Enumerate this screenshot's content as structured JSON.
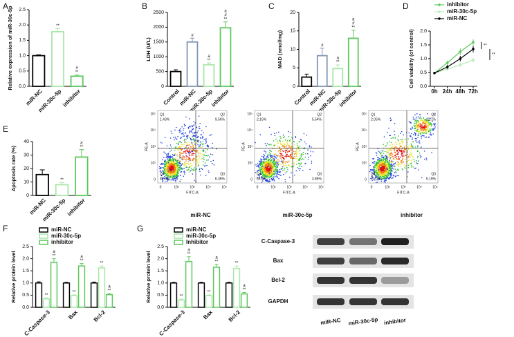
{
  "chart_data": [
    {
      "type": "bar",
      "panel": "A",
      "ylabel": "Relative expression of miR-30c-5p",
      "categories": [
        "miR-NC",
        "miR-30c-5p",
        "inhibitor"
      ],
      "values": [
        1.0,
        1.78,
        0.33
      ],
      "errors": [
        0.03,
        0.1,
        0.04
      ],
      "colors": [
        "#000000",
        "#a8e6a8",
        "#5cc85c"
      ],
      "annotations": [
        null,
        [
          "**"
        ],
        [
          "#",
          "**"
        ]
      ],
      "ylim": [
        0,
        2.5
      ],
      "yticks": [
        {
          "value": 0,
          "label": "0.0"
        },
        0.5,
        {
          "value": 1,
          "label": "1.0"
        },
        1.5,
        {
          "value": 2,
          "label": "2.0"
        },
        2.5
      ]
    },
    {
      "type": "bar",
      "panel": "B",
      "ylabel": "LDH (U/L)",
      "categories": [
        "Control",
        "miR-NC",
        "miR-30c-5p",
        "inhibitor"
      ],
      "values": [
        500,
        1500,
        730,
        1980
      ],
      "errors": [
        60,
        130,
        60,
        200
      ],
      "colors": [
        "#000000",
        "#8096b4",
        "#a8e6a8",
        "#5cc85c"
      ],
      "annotations": [
        null,
        [
          "#"
        ],
        [
          "a",
          "**"
        ],
        [
          "a",
          "#",
          "**"
        ]
      ],
      "ylim": [
        0,
        2500
      ],
      "yticks": [
        0,
        500,
        1000,
        1500,
        2000,
        2500
      ]
    },
    {
      "type": "bar",
      "panel": "C",
      "ylabel": "MAD (nmol/mg)",
      "categories": [
        "Control",
        "miR-NC",
        "miR-30c-5p",
        "inhibitor"
      ],
      "values": [
        2.5,
        8.3,
        4.8,
        13.0
      ],
      "errors": [
        0.8,
        2.0,
        1.0,
        2.2
      ],
      "colors": [
        "#000000",
        "#8096b4",
        "#a8e6a8",
        "#5cc85c"
      ],
      "annotations": [
        null,
        [
          "#"
        ],
        [
          "a",
          "**"
        ],
        [
          "a",
          "#",
          "**"
        ]
      ],
      "ylim": [
        0,
        20
      ],
      "yticks": [
        0,
        5,
        10,
        15,
        20
      ]
    },
    {
      "type": "line",
      "panel": "D",
      "ylabel": "Cell viability (of control)",
      "categories": [
        "0h",
        "24h",
        "48h",
        "72h"
      ],
      "series": [
        {
          "name": "inhibitor",
          "color": "#5cc85c",
          "values": [
            0.48,
            0.85,
            1.25,
            1.6
          ],
          "errors": [
            0.04,
            0.08,
            0.12,
            0.1
          ]
        },
        {
          "name": "miR-30c-5p",
          "color": "#b8ecb8",
          "values": [
            0.48,
            0.62,
            0.78,
            0.95
          ],
          "errors": [
            0.04,
            0.06,
            0.08,
            0.08
          ]
        },
        {
          "name": "miR-NC",
          "color": "#000000",
          "values": [
            0.48,
            0.7,
            1.0,
            1.35
          ],
          "errors": [
            0.04,
            0.07,
            0.1,
            0.12
          ]
        }
      ],
      "annotations": [
        "**",
        "**"
      ],
      "ylim": [
        0,
        2.0
      ],
      "yticks": [
        {
          "value": 0,
          "label": "0.0"
        },
        0.5,
        {
          "value": 1,
          "label": "1.0"
        },
        1.5,
        {
          "value": 2,
          "label": "2.0"
        }
      ]
    },
    {
      "type": "bar",
      "panel": "E",
      "ylabel": "Apoptosis rate (%)",
      "categories": [
        "miR-NC",
        "miR-30c-5p",
        "inhibitor"
      ],
      "values": [
        15.5,
        8,
        28.5
      ],
      "errors": [
        3.5,
        1.5,
        5.5
      ],
      "colors": [
        "#000000",
        "#a8e6a8",
        "#5cc85c"
      ],
      "annotations": [
        null,
        [
          "**"
        ],
        [
          "a",
          "**"
        ]
      ],
      "ylim": [
        0,
        40
      ],
      "yticks": [
        0,
        10,
        20,
        30,
        40
      ]
    },
    {
      "type": "grouped_bar",
      "panel": "F",
      "ylabel": "Relative protein level",
      "categories": [
        "C-Caspase-3",
        "Bax",
        "Bcl-2"
      ],
      "series": [
        {
          "name": "miR-NC",
          "color": "#000000",
          "values": [
            1.0,
            1.0,
            1.0
          ],
          "errors": [
            0.05,
            0.03,
            0.04
          ]
        },
        {
          "name": "miR-30c-5p",
          "color": "#a8e6a8",
          "values": [
            0.35,
            0.48,
            1.62
          ],
          "errors": [
            0.04,
            0.03,
            0.08
          ],
          "annotations": [
            [
              "**"
            ],
            [
              "**"
            ],
            [
              "**"
            ]
          ]
        },
        {
          "name": "inhibitor",
          "color": "#5cc85c",
          "values": [
            1.85,
            1.7,
            0.52
          ],
          "errors": [
            0.15,
            0.1,
            0.05
          ],
          "annotations": [
            [
              "a",
              "**"
            ],
            [
              "a",
              "**"
            ],
            [
              "a",
              "**"
            ]
          ]
        }
      ],
      "ylim": [
        0,
        2.5
      ],
      "yticks": [
        {
          "value": 0,
          "label": "0.0"
        },
        0.5,
        {
          "value": 1,
          "label": "1.0"
        },
        1.5,
        {
          "value": 2,
          "label": "2.0"
        },
        2.5
      ]
    },
    {
      "type": "grouped_bar",
      "panel": "G",
      "ylabel": "Relative protein level",
      "categories": [
        "C-Caspase-3",
        "Bax",
        "Bcl-2"
      ],
      "series": [
        {
          "name": "miR-NC",
          "color": "#000000",
          "values": [
            1.0,
            1.0,
            1.0
          ],
          "errors": [
            0.03,
            0.03,
            0.03
          ]
        },
        {
          "name": "miR-30c-5p",
          "color": "#a8e6a8",
          "values": [
            0.3,
            0.48,
            1.6
          ],
          "errors": [
            0.04,
            0.03,
            0.1
          ],
          "annotations": [
            [
              "**"
            ],
            [
              "**"
            ],
            [
              "**"
            ]
          ]
        },
        {
          "name": "Inhibitor",
          "color": "#5cc85c",
          "values": [
            1.88,
            1.65,
            0.55
          ],
          "errors": [
            0.2,
            0.12,
            0.06
          ],
          "annotations": [
            [
              "a",
              "**"
            ],
            [
              "a",
              "**"
            ],
            [
              "a",
              "**"
            ]
          ]
        }
      ],
      "ylim": [
        0,
        2.5
      ],
      "yticks": [
        {
          "value": 0,
          "label": "0.0"
        },
        0.5,
        {
          "value": 1,
          "label": "1.0"
        },
        1.5,
        {
          "value": 2,
          "label": "2.0"
        },
        2.5
      ]
    }
  ],
  "flow_cytometry": {
    "x_label": "FITC-A",
    "y_label": "PE-A",
    "xticks": [
      "0",
      "10²",
      "10³",
      "10⁴",
      "10⁵"
    ],
    "yticks": [
      "10⁵",
      "10⁴",
      "10³",
      "10²",
      "0"
    ],
    "panels": [
      {
        "label": "miR-NC",
        "quadrants": [
          {
            "name": "Q1",
            "value": "1.43%"
          },
          {
            "name": "Q2",
            "value": "9.56%"
          },
          {
            "name": "Q3",
            "value": "6.35%"
          },
          {
            "name": "Q4",
            "value": "82.6%"
          }
        ]
      },
      {
        "label": "miR-30c-5p",
        "quadrants": [
          {
            "name": "Q1",
            "value": "2.16%"
          },
          {
            "name": "Q2",
            "value": "5.54%"
          },
          {
            "name": "Q3",
            "value": "3.85%"
          },
          {
            "name": "Q4",
            "value": "88.4%"
          }
        ]
      },
      {
        "label": "inhibitor",
        "quadrants": [
          {
            "name": "Q1",
            "value": "2.05%"
          },
          {
            "name": "Q2",
            "value": "22.7%"
          },
          {
            "name": "Q3",
            "value": "5.19%"
          },
          {
            "name": "Q4",
            "value": "70.0%"
          }
        ]
      }
    ]
  },
  "western_blot": {
    "rows": [
      "C-Caspase-3",
      "Bax",
      "Bcl-2",
      "GAPDH"
    ],
    "lanes": [
      "miR-NC",
      "miR-30c-5p",
      "inhibitor"
    ]
  }
}
